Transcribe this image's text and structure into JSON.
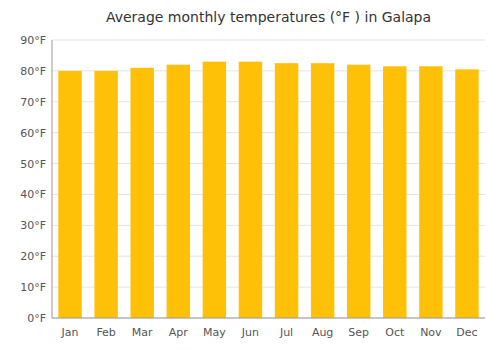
{
  "chart_data": {
    "type": "bar",
    "title": "Average monthly temperatures (°F ) in Galapa",
    "categories": [
      "Jan",
      "Feb",
      "Mar",
      "Apr",
      "May",
      "Jun",
      "Jul",
      "Aug",
      "Sep",
      "Oct",
      "Nov",
      "Dec"
    ],
    "values": [
      80,
      80,
      81,
      82,
      83,
      83,
      82.5,
      82.5,
      82,
      81.5,
      81.5,
      80.5
    ],
    "color": "#FFC107",
    "ylim": [
      0,
      90
    ],
    "yticks": [
      {
        "value": 0,
        "label": "0°F"
      },
      {
        "value": 10,
        "label": "10°F"
      },
      {
        "value": 20,
        "label": "20°F"
      },
      {
        "value": 30,
        "label": "30°F"
      },
      {
        "value": 40,
        "label": "40°F"
      },
      {
        "value": 50,
        "label": "50°F"
      },
      {
        "value": 60,
        "label": "60°F"
      },
      {
        "value": 70,
        "label": "70°F"
      },
      {
        "value": 80,
        "label": "80°F"
      },
      {
        "value": 90,
        "label": "90°F"
      }
    ],
    "grid": true
  }
}
